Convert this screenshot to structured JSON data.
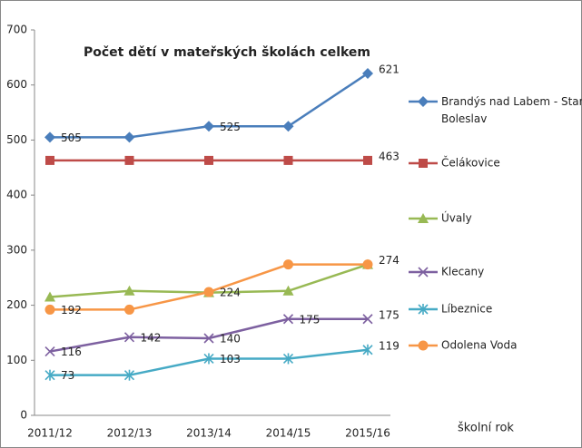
{
  "chart_data": {
    "type": "line",
    "title": "Počet dětí v mateřských školách celkem",
    "x_label": "školní rok",
    "categories": [
      "2011/12",
      "2012/13",
      "2013/14",
      "2014/15",
      "2015/16"
    ],
    "ylim": [
      0,
      700
    ],
    "yticks": [
      0,
      100,
      200,
      300,
      400,
      500,
      600,
      700
    ],
    "grid": false,
    "legend": "right",
    "series": [
      {
        "name": "Brandýs nad Labem - Stará Boleslav",
        "color": "#4a7ebb",
        "marker": "diamond",
        "values": [
          505,
          505,
          525,
          525,
          621
        ],
        "value_labels": [
          "505",
          null,
          "525",
          null,
          "621"
        ]
      },
      {
        "name": "Čelákovice",
        "color": "#be4b48",
        "marker": "square",
        "values": [
          463,
          463,
          463,
          463,
          463
        ],
        "value_labels": [
          null,
          null,
          null,
          null,
          "463"
        ]
      },
      {
        "name": "Úvaly",
        "color": "#98b954",
        "marker": "triangle",
        "values": [
          215,
          226,
          223,
          226,
          274
        ],
        "value_labels": [
          null,
          null,
          null,
          null,
          null
        ]
      },
      {
        "name": "Klecany",
        "color": "#7d60a0",
        "marker": "x",
        "values": [
          116,
          142,
          140,
          175,
          175
        ],
        "value_labels": [
          "116",
          "142",
          "140",
          "175",
          "175"
        ]
      },
      {
        "name": "Líbeznice",
        "color": "#46aac5",
        "marker": "star",
        "values": [
          73,
          73,
          103,
          103,
          119
        ],
        "value_labels": [
          "73",
          null,
          "103",
          null,
          "119"
        ]
      },
      {
        "name": "Odolena Voda",
        "color": "#f79646",
        "marker": "circle",
        "values": [
          192,
          192,
          224,
          274,
          274
        ],
        "value_labels": [
          "192",
          null,
          "224",
          null,
          "274"
        ]
      }
    ]
  }
}
